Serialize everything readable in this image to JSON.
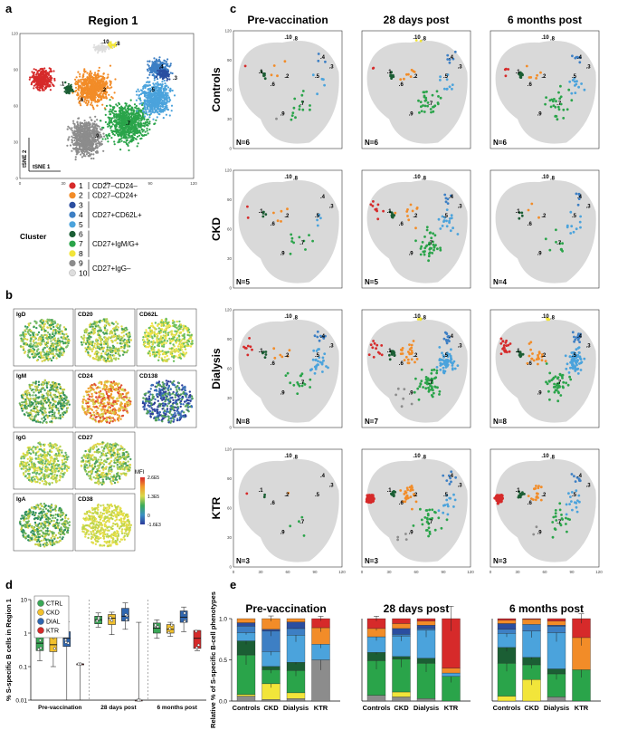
{
  "panel_labels": {
    "a": "a",
    "b": "b",
    "c": "c",
    "d": "d",
    "e": "e"
  },
  "colors": {
    "c1": "#d62a2a",
    "c2": "#f28c28",
    "c3": "#2b4ea0",
    "c4": "#3d7fc4",
    "c5": "#4ba3dc",
    "c6": "#1b5e34",
    "c7": "#2aa44a",
    "c8": "#f2e53a",
    "c9": "#8c8c8c",
    "c10": "#dddddd",
    "ctrl": "#3aa857",
    "ckd": "#f2c12e",
    "dial": "#2f66b0",
    "ktr": "#d62a2a"
  },
  "panel_a": {
    "title": "Region 1",
    "x_axis_label": "tSNE 1",
    "y_axis_label": "tSNE 2",
    "x_ticks": [
      "0",
      "30",
      "60",
      "90",
      "120"
    ],
    "y_ticks": [
      "0",
      "30",
      "60",
      "90",
      "120"
    ],
    "cluster_numbers": [
      ".1",
      ".2",
      ".3",
      ".4",
      ".5",
      ".6",
      ".7",
      ".8",
      ".9",
      ".10"
    ],
    "legend_title": "Cluster",
    "legend_numbers": [
      "1",
      "2",
      "3",
      "4",
      "5",
      "6",
      "7",
      "8",
      "9",
      "10"
    ],
    "legend_groups": [
      "CD27–CD24–",
      "CD27–CD24+",
      "CD27+CD62L+",
      "CD27+IgM/G+",
      "CD27+IgG–"
    ]
  },
  "panel_b": {
    "markers": [
      "IgD",
      "CD20",
      "CD62L",
      "IgM",
      "CD24",
      "CD138",
      "IgG",
      "CD27",
      "IgA",
      "CD38"
    ],
    "colorbar_title": "MFI",
    "colorbar_ticks": [
      "2.6E5",
      "1.3E5",
      "0",
      "-1.6E3"
    ]
  },
  "panel_c": {
    "columns": [
      "Pre-vaccination",
      "28 days post",
      "6 months post"
    ],
    "rows": [
      "Controls",
      "CKD",
      "Dialysis",
      "KTR"
    ],
    "n_values": [
      [
        "N=6",
        "N=6",
        "N=6"
      ],
      [
        "N=5",
        "N=5",
        "N=4"
      ],
      [
        "N=8",
        "N=7",
        "N=8"
      ],
      [
        "N=3",
        "N=3",
        "N=3"
      ]
    ],
    "x_ticks": [
      "0",
      "30",
      "60",
      "90",
      "120"
    ],
    "y_ticks": [
      "0",
      "30",
      "60",
      "90",
      "120"
    ],
    "cluster_numbers": [
      ".1",
      ".2",
      ".3",
      ".4",
      ".5",
      ".6",
      ".7",
      ".8",
      ".9",
      ".10"
    ]
  },
  "chart_data": [
    {
      "type": "box",
      "title": "",
      "ylabel": "% S-specific B cells in Region 1",
      "yscale": "log",
      "ylim": [
        0.01,
        10
      ],
      "y_ticks": [
        "10",
        "1",
        "0.1",
        "0.01"
      ],
      "categories": [
        "Pre-vaccination",
        "28 days post",
        "6 months post"
      ],
      "legend": [
        "CTRL",
        "CKD",
        "DIAL",
        "KTR"
      ],
      "series": [
        {
          "name": "CTRL",
          "median": [
            0.5,
            2.5,
            1.4
          ],
          "q1": [
            0.3,
            1.9,
            1.0
          ],
          "q3": [
            0.8,
            3.2,
            2.0
          ],
          "min": [
            0.15,
            1.5,
            0.7
          ],
          "max": [
            1.3,
            4.0,
            2.5
          ]
        },
        {
          "name": "CKD",
          "median": [
            0.45,
            2.8,
            1.3
          ],
          "q1": [
            0.28,
            1.8,
            1.0
          ],
          "q3": [
            1.0,
            3.6,
            1.8
          ],
          "min": [
            0.1,
            0.9,
            0.8
          ],
          "max": [
            1.6,
            4.2,
            2.1
          ]
        },
        {
          "name": "DIAL",
          "median": [
            0.7,
            3.2,
            3.0
          ],
          "q1": [
            0.4,
            2.3,
            2.1
          ],
          "q3": [
            1.1,
            5.5,
            4.6
          ],
          "min": [
            0.01,
            1.3,
            1.1
          ],
          "max": [
            2.2,
            8.0,
            6.0
          ]
        },
        {
          "name": "KTR",
          "median": [
            0.12,
            0.01,
            0.7
          ],
          "q1": [
            0.12,
            0.01,
            0.35
          ],
          "q3": [
            0.12,
            0.01,
            1.2
          ],
          "min": [
            0.01,
            0.01,
            0.3
          ],
          "max": [
            0.12,
            2.1,
            1.2
          ]
        }
      ]
    },
    {
      "type": "bar",
      "stacked": true,
      "ylabel": "Relative % of S-specific B-cell phenotypes",
      "ylim": [
        0,
        1
      ],
      "y_ticks": [
        "1.0",
        "0.5",
        "0.0"
      ],
      "groups": [
        "Pre-vaccination",
        "28 days post",
        "6 months post"
      ],
      "categories": [
        "Controls",
        "CKD",
        "Dialysis",
        "KTR"
      ],
      "series_order": [
        "c9",
        "c8",
        "c7",
        "c6",
        "c5",
        "c4",
        "c3",
        "c2",
        "c1"
      ],
      "values": [
        [
          [
            0.06,
            0.02,
            0.48,
            0.17,
            0.1,
            0.08,
            0.04,
            0.05,
            0.0
          ],
          [
            0.02,
            0.19,
            0.17,
            0.04,
            0.18,
            0.25,
            0.02,
            0.13,
            0.0
          ],
          [
            0.03,
            0.07,
            0.27,
            0.1,
            0.33,
            0.08,
            0.08,
            0.04,
            0.0
          ],
          [
            0.5,
            0.0,
            0.0,
            0.0,
            0.19,
            0.0,
            0.0,
            0.2,
            0.11
          ]
        ],
        [
          [
            0.07,
            0.0,
            0.42,
            0.1,
            0.19,
            0.0,
            0.0,
            0.1,
            0.12
          ],
          [
            0.05,
            0.06,
            0.4,
            0.03,
            0.25,
            0.02,
            0.07,
            0.06,
            0.06
          ],
          [
            0.03,
            0.0,
            0.43,
            0.06,
            0.34,
            0.02,
            0.04,
            0.05,
            0.03
          ],
          [
            0.0,
            0.0,
            0.3,
            0.0,
            0.04,
            0.0,
            0.0,
            0.06,
            0.6
          ]
        ],
        [
          [
            0.0,
            0.06,
            0.4,
            0.19,
            0.17,
            0.05,
            0.07,
            0.04,
            0.02
          ],
          [
            0.0,
            0.26,
            0.18,
            0.09,
            0.32,
            0.08,
            0.0,
            0.06,
            0.01
          ],
          [
            0.05,
            0.0,
            0.28,
            0.06,
            0.44,
            0.08,
            0.01,
            0.05,
            0.03
          ],
          [
            0.0,
            0.0,
            0.38,
            0.0,
            0.0,
            0.0,
            0.0,
            0.39,
            0.23
          ]
        ]
      ]
    }
  ]
}
